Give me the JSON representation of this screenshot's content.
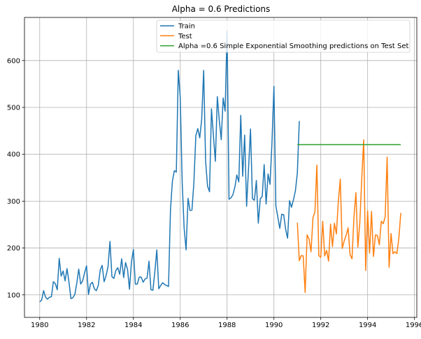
{
  "chart_data": {
    "type": "line",
    "title": "Alpha = 0.6 Predictions",
    "xlabel": "",
    "ylabel": "",
    "xlim": [
      1979.35,
      1996.1
    ],
    "ylim": [
      52,
      692
    ],
    "x_ticks": [
      1980,
      1982,
      1984,
      1986,
      1988,
      1990,
      1992,
      1994,
      1996
    ],
    "y_ticks": [
      100,
      200,
      300,
      400,
      500,
      600
    ],
    "grid": true,
    "legend_position": "top-right",
    "series": [
      {
        "name": "Train",
        "color": "#1f77b4",
        "x_start": 1980.0,
        "step": 0.0833333,
        "values": [
          85,
          89,
          109,
          95,
          91,
          95,
          96,
          128,
          124,
          111,
          178,
          140,
          151,
          130,
          156,
          127,
          92,
          94,
          101,
          125,
          155,
          123,
          130,
          147,
          162,
          101,
          123,
          127,
          113,
          109,
          120,
          153,
          163,
          128,
          141,
          160,
          214,
          139,
          135,
          152,
          158,
          144,
          177,
          137,
          169,
          154,
          112,
          170,
          197,
          123,
          123,
          138,
          138,
          127,
          134,
          136,
          172,
          111,
          110,
          150,
          196,
          113,
          120,
          126,
          122,
          120,
          118,
          282,
          343,
          365,
          362,
          579,
          521,
          340,
          242,
          196,
          306,
          280,
          281,
          340,
          440,
          455,
          435,
          475,
          579,
          385,
          332,
          320,
          497,
          440,
          385,
          523,
          473,
          431,
          520,
          492,
          663,
          304,
          307,
          314,
          330,
          356,
          341,
          483,
          353,
          441,
          289,
          370,
          454,
          305,
          302,
          344,
          253,
          305,
          310,
          378,
          294,
          358,
          336,
          425,
          545,
          290,
          266,
          242,
          272,
          271,
          240,
          221,
          301,
          287,
          303,
          322,
          360,
          471
        ]
      },
      {
        "name": "Test",
        "color": "#ff7f0e",
        "x_start": 1991.0,
        "step": 0.0833333,
        "values": [
          254,
          173,
          184,
          183,
          105,
          228,
          219,
          192,
          265,
          277,
          377,
          184,
          180,
          257,
          183,
          195,
          172,
          251,
          203,
          253,
          230,
          300,
          347,
          199,
          215,
          227,
          243,
          186,
          177,
          266,
          318,
          202,
          254,
          348,
          431,
          152,
          279,
          189,
          278,
          182,
          228,
          227,
          207,
          257,
          252,
          267,
          394,
          159,
          231,
          188,
          192,
          188,
          221,
          275
        ]
      },
      {
        "name": "Alpha =0.6 Simple Exponential Smoothing predictions on Test Set",
        "color": "#2ca02c",
        "x": [
          1991.0,
          1995.4167
        ],
        "values": [
          420.5,
          420.5
        ]
      }
    ]
  }
}
